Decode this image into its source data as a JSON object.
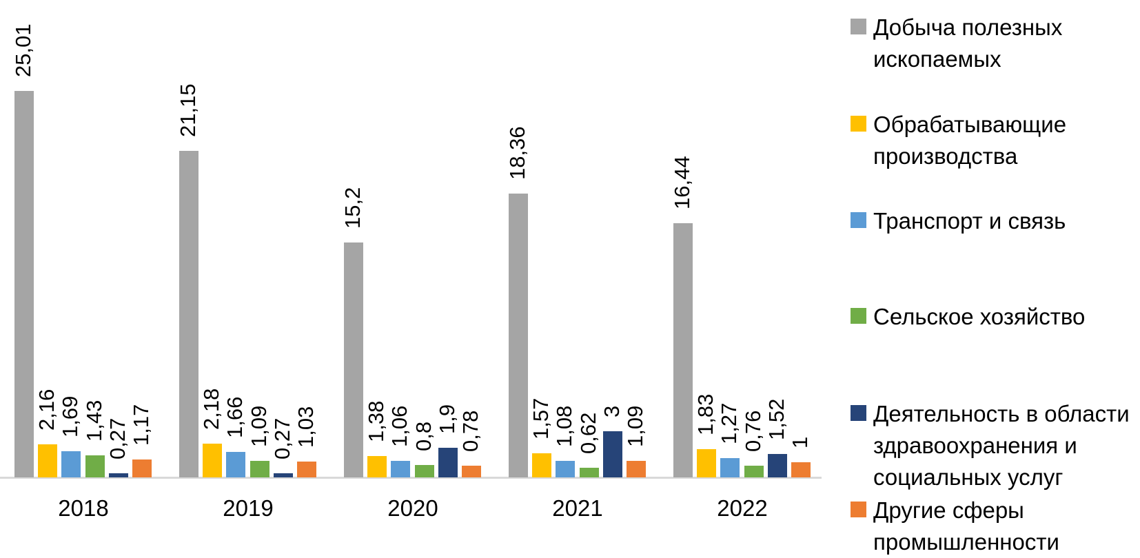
{
  "chart_data": {
    "type": "bar",
    "title": "",
    "xlabel": "",
    "ylabel": "",
    "categories": [
      "2018",
      "2019",
      "2020",
      "2021",
      "2022"
    ],
    "series": [
      {
        "name": "Добыча полезных ископаемых",
        "color": "#a5a5a5",
        "values": [
          25.01,
          21.15,
          15.2,
          18.36,
          16.44
        ]
      },
      {
        "name": "Обрабатывающие производства",
        "color": "#ffc000",
        "values": [
          2.16,
          2.18,
          1.38,
          1.57,
          1.83
        ]
      },
      {
        "name": "Транспорт и связь",
        "color": "#5b9bd5",
        "values": [
          1.69,
          1.66,
          1.06,
          1.08,
          1.27
        ]
      },
      {
        "name": "Сельское хозяйство",
        "color": "#70ad47",
        "values": [
          1.43,
          1.09,
          0.8,
          0.62,
          0.76
        ]
      },
      {
        "name": "Деятельность в области здравоохранения и социальных услуг",
        "color": "#264478",
        "values": [
          0.27,
          0.27,
          1.9,
          3,
          1.52
        ]
      },
      {
        "name": "Другие сферы промышленности",
        "color": "#ed7d31",
        "values": [
          1.17,
          1.03,
          0.78,
          1.09,
          1
        ]
      }
    ],
    "value_labels": {
      "shown": true,
      "rotation_degrees": -90,
      "decimal_separator": ","
    },
    "legend_position": "right",
    "grid": false,
    "y_axis_visible": false,
    "x_axis_line_color": "#d9d9d9",
    "background_color": "#ffffff",
    "text_color": "#000000"
  }
}
